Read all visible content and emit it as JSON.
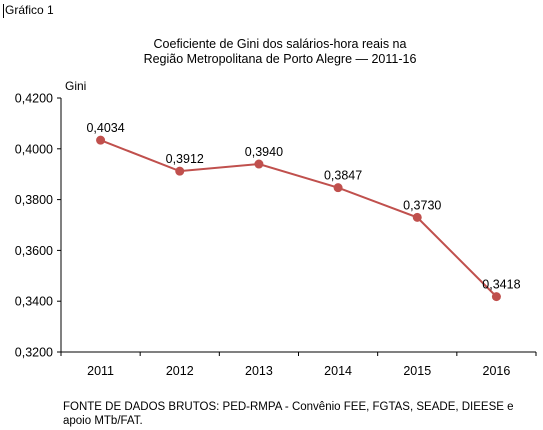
{
  "figure_label": "Gráfico 1",
  "chart_data": {
    "type": "line",
    "title_line1": "Coeficiente de Gini dos salários-hora reais na",
    "title_line2": "Região Metropolitana de Porto Alegre — 2011-16",
    "ylabel": "Gini",
    "xlabel": "",
    "categories": [
      "2011",
      "2012",
      "2013",
      "2014",
      "2015",
      "2016"
    ],
    "series": [
      {
        "values": [
          0.4034,
          0.3912,
          0.394,
          0.3847,
          0.373,
          0.3418
        ],
        "labels": [
          "0,4034",
          "0,3912",
          "0,3940",
          "0,3847",
          "0,3730",
          "0,3418"
        ],
        "color": "#c0504d"
      }
    ],
    "ylim": [
      0.32,
      0.42
    ],
    "yticks": [
      0.32,
      0.34,
      0.36,
      0.38,
      0.4,
      0.42
    ],
    "ytick_labels": [
      "0,3200",
      "0,3400",
      "0,3600",
      "0,3800",
      "0,4000",
      "0,4200"
    ],
    "grid": false,
    "legend": "none"
  },
  "source": {
    "line1": "FONTE DE DADOS BRUTOS: PED-RMPA - Convênio FEE, FGTAS, SEADE, DIEESE e",
    "line2": "apoio MTb/FAT."
  }
}
